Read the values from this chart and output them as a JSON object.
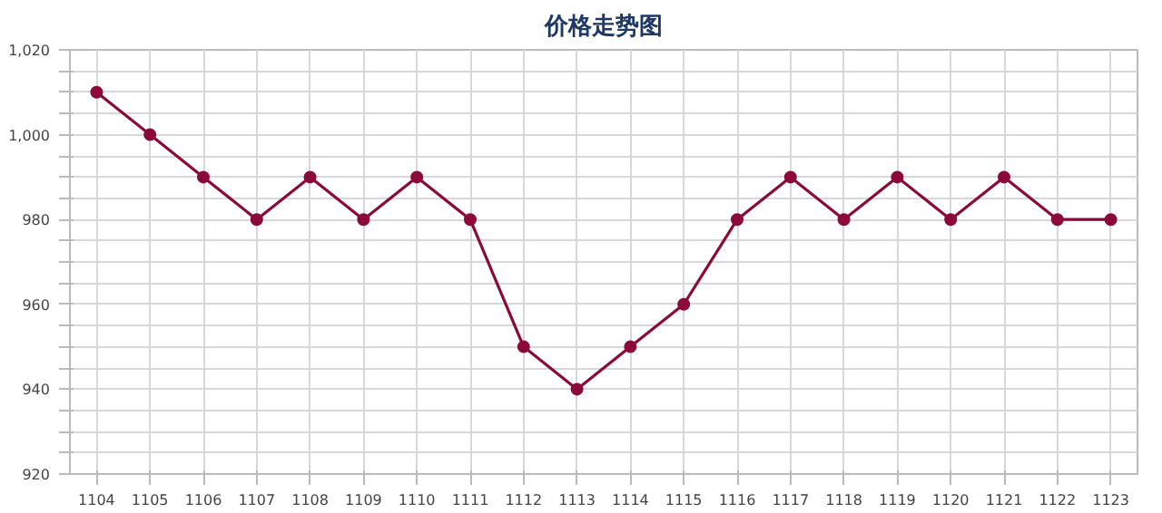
{
  "chart_data": {
    "type": "line",
    "title": "价格走势图",
    "categories": [
      "1104",
      "1105",
      "1106",
      "1107",
      "1108",
      "1109",
      "1110",
      "1111",
      "1112",
      "1113",
      "1114",
      "1115",
      "1116",
      "1117",
      "1118",
      "1119",
      "1120",
      "1121",
      "1122",
      "1123"
    ],
    "series": [
      {
        "color": "#8b0a3a",
        "values": [
          1010,
          1000,
          990,
          980,
          990,
          980,
          990,
          980,
          950,
          940,
          950,
          960,
          980,
          990,
          980,
          990,
          980,
          990,
          980,
          980
        ]
      }
    ],
    "ylim": [
      920,
      1020
    ],
    "yticks": [
      {
        "value": 920,
        "label": "920"
      },
      {
        "value": 925,
        "label": null
      },
      {
        "value": 930,
        "label": null
      },
      {
        "value": 935,
        "label": null
      },
      {
        "value": 940,
        "label": "940"
      },
      {
        "value": 945,
        "label": null
      },
      {
        "value": 950,
        "label": null
      },
      {
        "value": 955,
        "label": null
      },
      {
        "value": 960,
        "label": "960"
      },
      {
        "value": 965,
        "label": null
      },
      {
        "value": 970,
        "label": null
      },
      {
        "value": 975,
        "label": null
      },
      {
        "value": 980,
        "label": "980"
      },
      {
        "value": 985,
        "label": null
      },
      {
        "value": 990,
        "label": null
      },
      {
        "value": 995,
        "label": null
      },
      {
        "value": 1000,
        "label": "1,000"
      },
      {
        "value": 1005,
        "label": null
      },
      {
        "value": 1010,
        "label": null
      },
      {
        "value": 1015,
        "label": null
      },
      {
        "value": 1020,
        "label": "1,020"
      }
    ],
    "grid": true,
    "marker": "circle",
    "line_style": "solid"
  }
}
